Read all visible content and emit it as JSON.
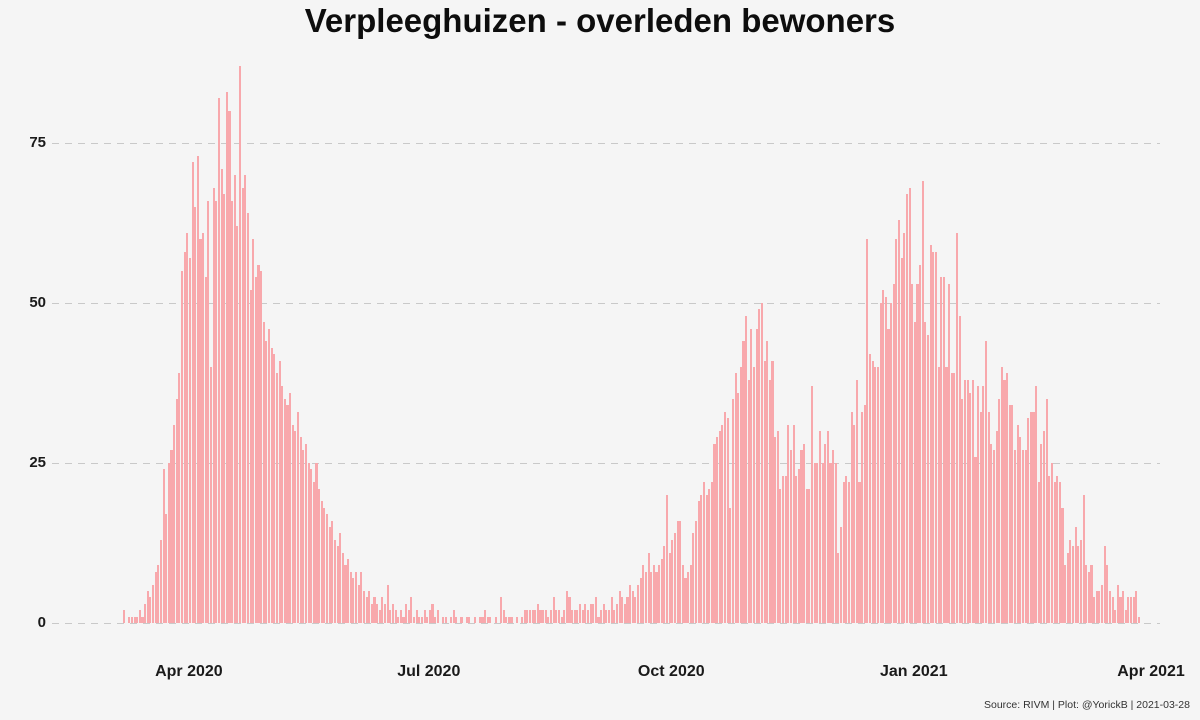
{
  "title": "Verpleeghuizen - overleden bewoners",
  "source_note": "Source: RIVM | Plot: @YorickB |  2021-03-28",
  "colors": {
    "background": "#f5f5f5",
    "bar": "#f8a8ac",
    "gridline": "#c9c9c9",
    "title_text": "#0d0d0d",
    "axis_text": "#1a1a1a",
    "source_text": "#333333"
  },
  "chart_data": {
    "type": "bar",
    "title": "Verpleeghuizen - overleden bewoners",
    "xlabel": "",
    "ylabel": "",
    "frequency": "daily",
    "start_date": "2020-03-07",
    "end_date": "2021-03-27",
    "ylim": [
      0,
      90
    ],
    "y_ticks": [
      0,
      25,
      50,
      75
    ],
    "grid": "horizontal-dashed",
    "legend": "none",
    "x_ticks": [
      {
        "label": "Apr 2020",
        "day_index": 25
      },
      {
        "label": "Jul 2020",
        "day_index": 116
      },
      {
        "label": "Oct 2020",
        "day_index": 208
      },
      {
        "label": "Jan 2021",
        "day_index": 300
      },
      {
        "label": "Apr 2021",
        "day_index": 390
      }
    ],
    "values": [
      2,
      0,
      1,
      1,
      1,
      1,
      2,
      1,
      3,
      5,
      4,
      6,
      8,
      9,
      13,
      24,
      17,
      25,
      27,
      31,
      35,
      39,
      55,
      58,
      61,
      57,
      72,
      65,
      73,
      60,
      61,
      54,
      66,
      40,
      68,
      66,
      82,
      71,
      67,
      83,
      80,
      66,
      70,
      62,
      87,
      68,
      70,
      64,
      52,
      60,
      54,
      56,
      55,
      47,
      44,
      46,
      43,
      42,
      39,
      41,
      37,
      35,
      34,
      36,
      31,
      30,
      33,
      29,
      27,
      28,
      25,
      24,
      22,
      25,
      21,
      19,
      18,
      17,
      15,
      16,
      13,
      12,
      14,
      11,
      9,
      10,
      8,
      7,
      8,
      6,
      8,
      5,
      4,
      5,
      3,
      4,
      3,
      2,
      4,
      3,
      6,
      2,
      3,
      2,
      1,
      2,
      1,
      3,
      2,
      4,
      1,
      2,
      1,
      1,
      2,
      1,
      2,
      3,
      1,
      2,
      0,
      1,
      1,
      0,
      1,
      2,
      1,
      0,
      1,
      0,
      1,
      1,
      0,
      1,
      0,
      1,
      1,
      2,
      1,
      1,
      0,
      1,
      0,
      4,
      2,
      1,
      1,
      1,
      0,
      1,
      0,
      1,
      2,
      2,
      2,
      2,
      2,
      3,
      2,
      2,
      2,
      1,
      2,
      4,
      2,
      2,
      1,
      2,
      5,
      4,
      2,
      2,
      2,
      3,
      2,
      3,
      2,
      3,
      3,
      4,
      1,
      2,
      3,
      2,
      2,
      4,
      2,
      3,
      5,
      4,
      3,
      4,
      6,
      5,
      4,
      6,
      7,
      9,
      8,
      11,
      8,
      9,
      8,
      9,
      10,
      12,
      20,
      11,
      13,
      14,
      16,
      16,
      9,
      7,
      8,
      9,
      14,
      16,
      19,
      20,
      22,
      20,
      21,
      22,
      28,
      29,
      30,
      31,
      33,
      32,
      18,
      35,
      39,
      36,
      40,
      44,
      48,
      38,
      46,
      40,
      46,
      49,
      50,
      41,
      44,
      38,
      41,
      29,
      30,
      21,
      23,
      23,
      31,
      27,
      31,
      23,
      24,
      27,
      28,
      21,
      21,
      37,
      25,
      25,
      30,
      25,
      28,
      30,
      25,
      27,
      25,
      11,
      15,
      22,
      23,
      22,
      33,
      31,
      38,
      22,
      33,
      34,
      60,
      42,
      41,
      40,
      40,
      50,
      52,
      51,
      46,
      50,
      53,
      60,
      63,
      57,
      61,
      67,
      68,
      53,
      47,
      53,
      56,
      69,
      47,
      45,
      59,
      58,
      58,
      40,
      54,
      54,
      40,
      53,
      39,
      39,
      61,
      48,
      35,
      38,
      38,
      36,
      38,
      26,
      37,
      33,
      37,
      44,
      33,
      28,
      27,
      30,
      35,
      40,
      38,
      39,
      34,
      34,
      27,
      31,
      29,
      27,
      27,
      32,
      33,
      33,
      37,
      22,
      28,
      30,
      35,
      23,
      25,
      22,
      23,
      22,
      18,
      9,
      11,
      13,
      12,
      15,
      12,
      13,
      20,
      9,
      8,
      9,
      4,
      5,
      5,
      6,
      12,
      9,
      5,
      4,
      2,
      6,
      4,
      5,
      2,
      4,
      4,
      4,
      5,
      1
    ]
  }
}
